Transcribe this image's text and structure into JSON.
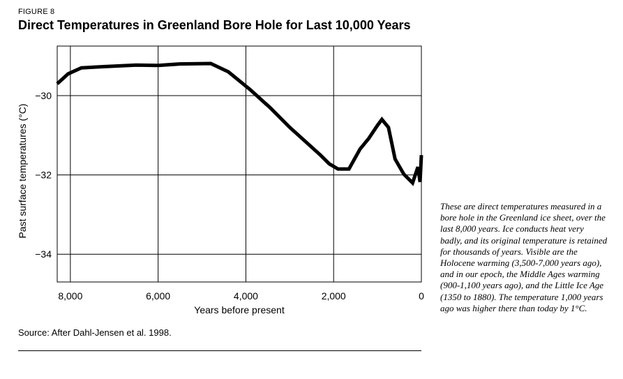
{
  "figure_label": "FIGURE 8",
  "title": "Direct Temperatures in Greenland Bore Hole for Last 10,000 Years",
  "source": "Source: After Dahl-Jensen et al. 1998.",
  "caption": "These are direct temperatures measured in a bore hole in the Greenland ice sheet, over the last 8,000 years. Ice conducts heat very badly, and its original temperature is retained for thousands of years. Visible are the Holocene warming (3,500-7,000 years ago), and in our epoch, the Middle Ages warming (900-1,100 years ago), and the Little Ice Age (1350 to 1880). The temperature 1,000 years ago was higher there than today by 1°C.",
  "colors": {
    "line": "#000000",
    "grid": "#000000",
    "background": "#ffffff"
  },
  "chart_data": {
    "type": "line",
    "title": "Direct Temperatures in Greenland Bore Hole for Last 10,000 Years",
    "xlabel": "Years before present",
    "ylabel": "Past surface temperatures (°C)",
    "xlim": [
      8300,
      0
    ],
    "ylim": [
      -34.7,
      -28.75
    ],
    "x_reversed": true,
    "grid": true,
    "xticks": [
      8000,
      6000,
      4000,
      2000,
      0
    ],
    "xtick_labels": [
      "8,000",
      "6,000",
      "4,000",
      "2,000",
      "0"
    ],
    "yticks": [
      -30,
      -32,
      -34
    ],
    "ytick_labels": [
      "−30",
      "−32",
      "−34"
    ],
    "series": [
      {
        "x": [
          8300,
          8050,
          7750,
          7250,
          6500,
          6000,
          5500,
          4800,
          4400,
          3900,
          3450,
          3000,
          2600,
          2300,
          2100,
          1900,
          1650,
          1400,
          1200,
          1000,
          900,
          750,
          600,
          400,
          200,
          80,
          30,
          0
        ],
        "y": [
          -29.7,
          -29.45,
          -29.3,
          -29.27,
          -29.23,
          -29.24,
          -29.2,
          -29.19,
          -29.4,
          -29.85,
          -30.3,
          -30.8,
          -31.2,
          -31.5,
          -31.72,
          -31.85,
          -31.85,
          -31.35,
          -31.08,
          -30.75,
          -30.6,
          -30.8,
          -31.6,
          -31.98,
          -32.2,
          -31.8,
          -32.18,
          -31.5
        ]
      }
    ]
  }
}
